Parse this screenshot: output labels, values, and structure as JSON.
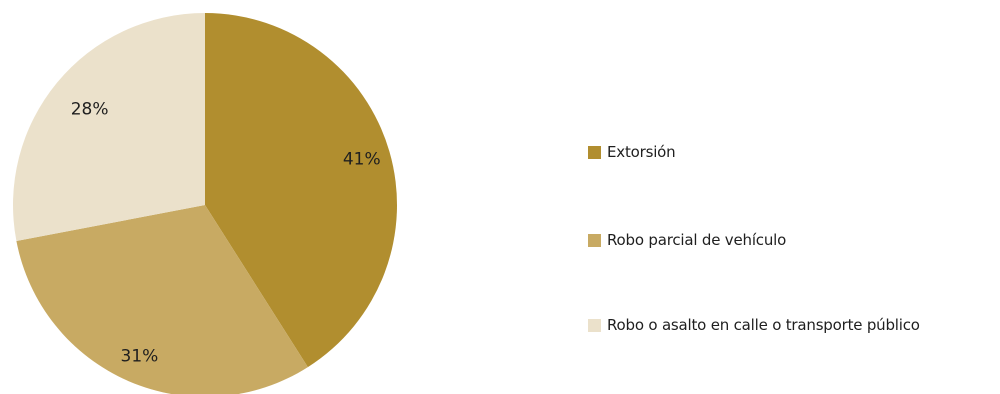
{
  "chart_data": {
    "type": "pie",
    "title": "",
    "slices": [
      {
        "label": "Extorsión",
        "value": 41,
        "value_label": "41%",
        "color": "#b18e2f"
      },
      {
        "label": "Robo parcial de vehículo",
        "value": 31,
        "value_label": "31%",
        "color": "#c8aa63"
      },
      {
        "label": "Robo o asalto en calle o transporte público",
        "value": 28,
        "value_label": "28%",
        "color": "#ebe1cb"
      }
    ],
    "start_angle_deg": 0,
    "direction": "clockwise",
    "legend_placement": "right"
  }
}
